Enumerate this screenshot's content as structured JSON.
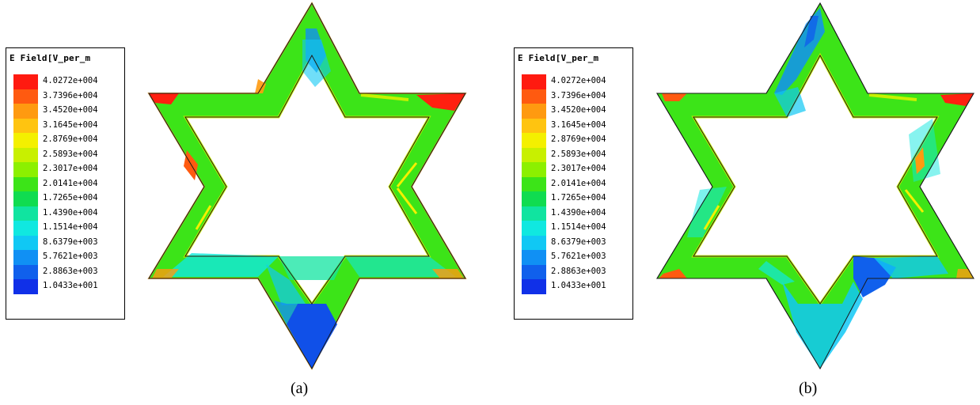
{
  "figures": [
    {
      "id": "a",
      "caption": "(a)",
      "legend": {
        "title": "E Field[V_per_m",
        "colors": [
          "#ff1a10",
          "#ff5a10",
          "#ff9a10",
          "#ffc410",
          "#f4f000",
          "#c8f000",
          "#8cf000",
          "#3ce418",
          "#10dc50",
          "#10e4a0",
          "#10e8e0",
          "#10c8f4",
          "#1090f4",
          "#1060ec",
          "#1030e8"
        ],
        "values": [
          "4.0272e+004",
          "3.7396e+004",
          "3.4520e+004",
          "3.1645e+004",
          "2.8769e+004",
          "2.5893e+004",
          "2.3017e+004",
          "2.0141e+004",
          "1.7265e+004",
          "1.4390e+004",
          "1.1514e+004",
          "8.6379e+003",
          "5.7621e+003",
          "2.8863e+003",
          "1.0433e+001"
        ]
      }
    },
    {
      "id": "b",
      "caption": "(b)",
      "legend": {
        "title": "E Field[V_per_m",
        "colors": [
          "#ff1a10",
          "#ff5a10",
          "#ff9a10",
          "#ffc410",
          "#f4f000",
          "#c8f000",
          "#8cf000",
          "#3ce418",
          "#10dc50",
          "#10e4a0",
          "#10e8e0",
          "#10c8f4",
          "#1090f4",
          "#1060ec",
          "#1030e8"
        ],
        "values": [
          "4.0272e+004",
          "3.7396e+004",
          "3.4520e+004",
          "3.1645e+004",
          "2.8769e+004",
          "2.5893e+004",
          "2.3017e+004",
          "2.0141e+004",
          "1.7265e+004",
          "1.4390e+004",
          "1.1514e+004",
          "8.6379e+003",
          "5.7621e+003",
          "2.8863e+003",
          "1.0433e+001"
        ]
      }
    }
  ]
}
